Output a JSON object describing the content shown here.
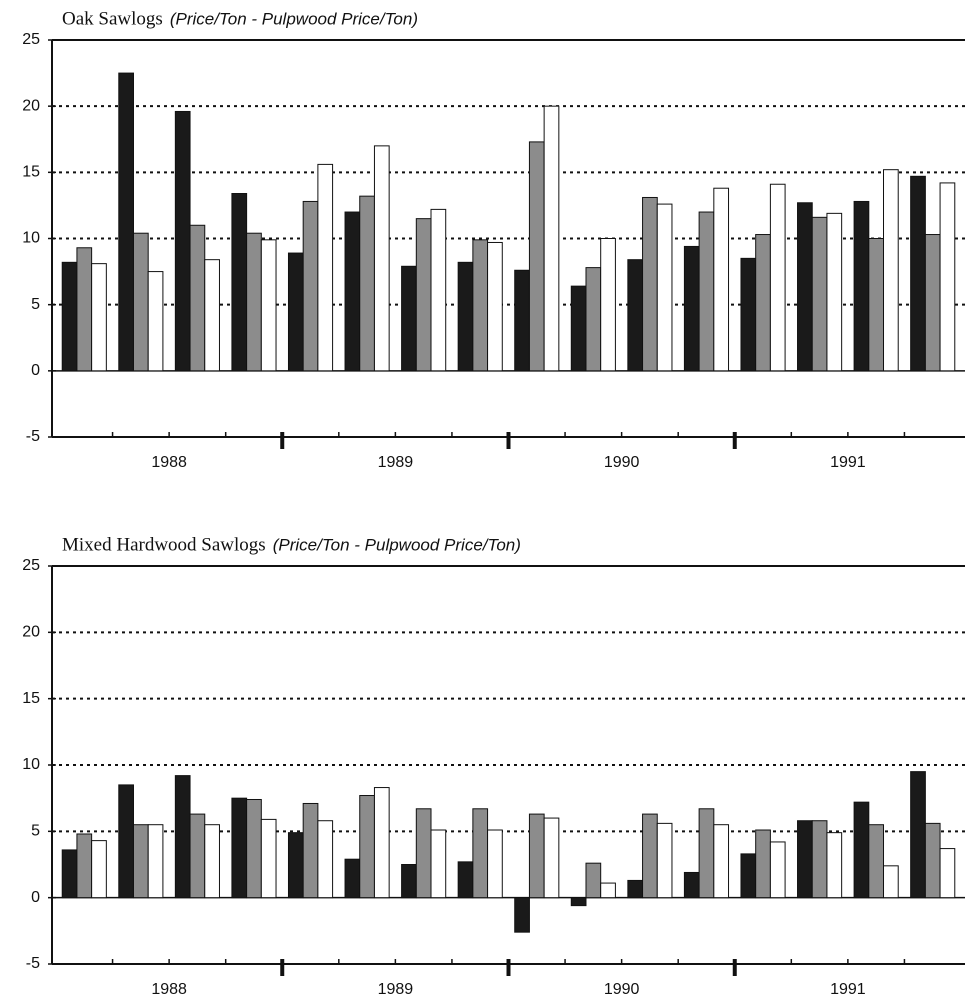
{
  "chart_data": [
    {
      "type": "bar",
      "title": "Oak Sawlogs",
      "subtitle": "(Price/Ton - Pulpwood Price/Ton)",
      "categories": [
        null,
        "1988",
        null,
        null,
        null,
        "1989",
        null,
        null,
        null,
        "1990",
        null,
        null,
        null,
        "1991",
        null,
        null
      ],
      "series": [
        {
          "color": "#1a1a1a",
          "values": [
            8.2,
            22.5,
            19.6,
            13.4,
            8.9,
            12.0,
            7.9,
            8.2,
            7.6,
            6.4,
            8.4,
            9.4,
            8.5,
            12.7,
            12.8,
            14.7
          ]
        },
        {
          "color": "#8c8c8c",
          "values": [
            9.3,
            10.4,
            11.0,
            10.4,
            12.8,
            13.2,
            11.5,
            9.9,
            17.3,
            7.8,
            13.1,
            12.0,
            10.3,
            11.6,
            10.0,
            10.3
          ]
        },
        {
          "color": "#ffffff",
          "values": [
            8.1,
            7.5,
            8.4,
            9.9,
            15.6,
            17.0,
            12.2,
            9.7,
            20.0,
            10.0,
            12.6,
            13.8,
            14.1,
            11.9,
            15.2,
            14.2
          ]
        }
      ],
      "ylim": [
        -5,
        25
      ],
      "yticks": [
        -5,
        0,
        5,
        10,
        15,
        20,
        25
      ],
      "grid": true
    },
    {
      "type": "bar",
      "title": "Mixed Hardwood Sawlogs",
      "subtitle": "(Price/Ton - Pulpwood Price/Ton)",
      "categories": [
        null,
        "1988",
        null,
        null,
        null,
        "1989",
        null,
        null,
        null,
        "1990",
        null,
        null,
        null,
        "1991",
        null,
        null
      ],
      "series": [
        {
          "color": "#1a1a1a",
          "values": [
            3.6,
            8.5,
            9.2,
            7.5,
            4.9,
            2.9,
            2.5,
            2.7,
            -2.6,
            -0.6,
            1.3,
            1.9,
            3.3,
            5.8,
            7.2,
            9.5
          ]
        },
        {
          "color": "#8c8c8c",
          "values": [
            4.8,
            5.5,
            6.3,
            7.4,
            7.1,
            7.7,
            6.7,
            6.7,
            6.3,
            2.6,
            6.3,
            6.7,
            5.1,
            5.8,
            5.5,
            5.6
          ]
        },
        {
          "color": "#ffffff",
          "values": [
            4.3,
            5.5,
            5.5,
            5.9,
            5.8,
            8.3,
            5.1,
            5.1,
            6.0,
            1.1,
            5.6,
            5.5,
            4.2,
            4.9,
            2.4,
            3.7
          ]
        }
      ],
      "ylim": [
        -5,
        25
      ],
      "yticks": [
        -5,
        0,
        5,
        10,
        15,
        20,
        25
      ],
      "grid": true
    }
  ]
}
